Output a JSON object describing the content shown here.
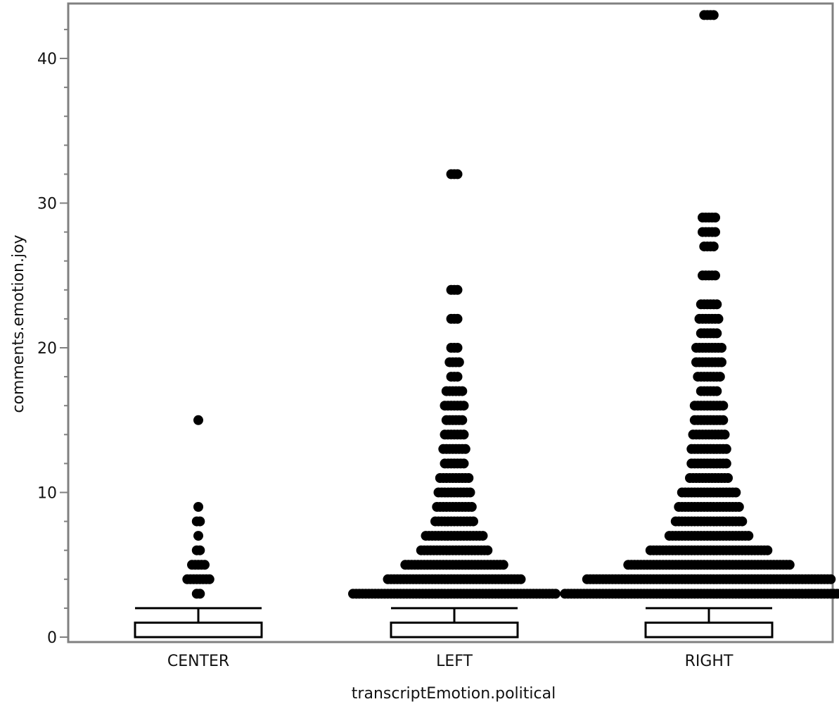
{
  "chart_data": {
    "type": "box",
    "xlabel": "transcriptEmotion.political",
    "ylabel": "comments.emotion.joy",
    "ylim": [
      0,
      43.5
    ],
    "y_ticks": [
      0,
      10,
      20,
      30,
      40
    ],
    "y_minor_step": 2,
    "grid": false,
    "categories": [
      "CENTER",
      "LEFT",
      "RIGHT"
    ],
    "boxes": [
      {
        "category": "CENTER",
        "min": 0,
        "q1": 0,
        "median": 0,
        "q3": 1,
        "whisker_high": 2
      },
      {
        "category": "LEFT",
        "min": 0,
        "q1": 0,
        "median": 0,
        "q3": 1,
        "whisker_high": 2
      },
      {
        "category": "RIGHT",
        "min": 0,
        "q1": 0,
        "median": 0,
        "q3": 1,
        "whisker_high": 2
      }
    ],
    "outliers": [
      {
        "category": "CENTER",
        "values": [
          [
            3,
            2
          ],
          [
            4,
            8
          ],
          [
            5,
            5
          ],
          [
            6,
            2
          ],
          [
            7,
            1
          ],
          [
            8,
            2
          ],
          [
            9,
            1
          ],
          [
            15,
            1
          ]
        ]
      },
      {
        "category": "LEFT",
        "values": [
          [
            3,
            65
          ],
          [
            4,
            43
          ],
          [
            5,
            32
          ],
          [
            6,
            22
          ],
          [
            7,
            19
          ],
          [
            8,
            13
          ],
          [
            9,
            12
          ],
          [
            10,
            11
          ],
          [
            11,
            10
          ],
          [
            12,
            7
          ],
          [
            13,
            8
          ],
          [
            14,
            7
          ],
          [
            15,
            6
          ],
          [
            16,
            7
          ],
          [
            17,
            6
          ],
          [
            18,
            3
          ],
          [
            19,
            4
          ],
          [
            20,
            3
          ],
          [
            22,
            3
          ],
          [
            24,
            3
          ],
          [
            32,
            3
          ]
        ]
      },
      {
        "category": "RIGHT",
        "values": [
          [
            3,
            92
          ],
          [
            4,
            78
          ],
          [
            5,
            52
          ],
          [
            6,
            38
          ],
          [
            7,
            26
          ],
          [
            8,
            22
          ],
          [
            9,
            20
          ],
          [
            10,
            18
          ],
          [
            11,
            13
          ],
          [
            12,
            12
          ],
          [
            13,
            12
          ],
          [
            14,
            11
          ],
          [
            15,
            10
          ],
          [
            16,
            10
          ],
          [
            17,
            6
          ],
          [
            18,
            8
          ],
          [
            19,
            9
          ],
          [
            20,
            9
          ],
          [
            21,
            6
          ],
          [
            22,
            7
          ],
          [
            23,
            6
          ],
          [
            25,
            5
          ],
          [
            27,
            4
          ],
          [
            28,
            5
          ],
          [
            29,
            5
          ],
          [
            43,
            4
          ]
        ]
      }
    ],
    "colors": {
      "marks": "#000000",
      "frame": "#808080",
      "axis": "#808080"
    }
  }
}
